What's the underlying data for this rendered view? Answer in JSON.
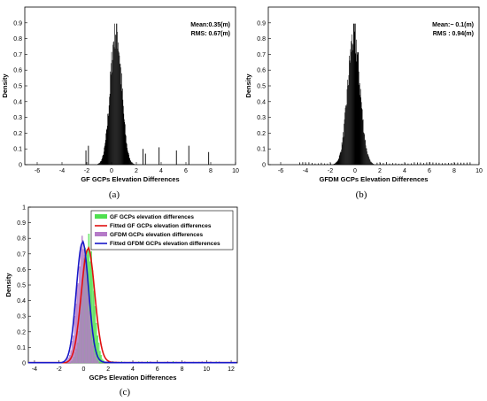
{
  "chart_data": [
    {
      "id": "a",
      "type": "bar",
      "caption": "(a)",
      "xlabel": "GF GCPs Elevation Differences",
      "ylabel": "Density",
      "xlim": [
        -7,
        10
      ],
      "ylim": [
        0,
        1
      ],
      "xticks": [
        -6,
        -4,
        -2,
        0,
        2,
        4,
        6,
        8,
        10
      ],
      "yticks": [
        0,
        0.1,
        0.2,
        0.3,
        0.4,
        0.5,
        0.6,
        0.7,
        0.8,
        0.9
      ],
      "annotations": [
        "Mean:0.35(m)",
        "RMS: 0.67(m)"
      ],
      "distribution": {
        "center": 0.35,
        "spread": 0.45,
        "peak": 0.89
      },
      "outliers": [
        [
          -2.1,
          0.09
        ],
        [
          -1.9,
          0.12
        ],
        [
          2.5,
          0.1
        ],
        [
          2.7,
          0.07
        ],
        [
          3.8,
          0.11
        ],
        [
          5.2,
          0.09
        ],
        [
          6.2,
          0.12
        ],
        [
          7.8,
          0.08
        ]
      ]
    },
    {
      "id": "b",
      "type": "bar",
      "caption": "(b)",
      "xlabel": "GFDM GCPs Elevation Differences",
      "ylabel": "Density",
      "xlim": [
        -7,
        10
      ],
      "ylim": [
        0,
        1
      ],
      "xticks": [
        -6,
        -4,
        -2,
        0,
        2,
        4,
        6,
        8,
        10
      ],
      "yticks": [
        0,
        0.1,
        0.2,
        0.3,
        0.4,
        0.5,
        0.6,
        0.7,
        0.8,
        0.9
      ],
      "annotations": [
        "Mean:− 0.1(m)",
        "RMS : 0.94(m)"
      ],
      "distribution": {
        "center": -0.1,
        "spread": 0.5,
        "peak": 0.84
      },
      "outliers": []
    },
    {
      "id": "c",
      "type": "bar",
      "caption": "(c)",
      "xlabel": "GCPs Elevation Differences",
      "ylabel": "Density",
      "xlim": [
        -4.5,
        12.5
      ],
      "ylim": [
        0,
        1
      ],
      "xticks": [
        -4,
        -2,
        0,
        2,
        4,
        6,
        8,
        10,
        12
      ],
      "yticks": [
        0,
        0.1,
        0.2,
        0.3,
        0.4,
        0.5,
        0.6,
        0.7,
        0.8,
        0.9,
        1
      ],
      "series": [
        {
          "name": "GF GCPs elevation differences",
          "kind": "hist",
          "color": "#4fe04f",
          "center": 0.35,
          "spread": 0.45,
          "peak": 0.8
        },
        {
          "name": "Fitted GF GCPs elevation differences",
          "kind": "fit",
          "color": "#e01010",
          "center": 0.35,
          "spread": 0.55,
          "peak": 0.73
        },
        {
          "name": "GFDM GCPs elevation differences",
          "kind": "hist",
          "color": "#b57ac8",
          "center": -0.1,
          "spread": 0.45,
          "peak": 0.75
        },
        {
          "name": "Fitted GFDM GCPs elevation differences",
          "kind": "fit",
          "color": "#1818c8",
          "center": -0.1,
          "spread": 0.5,
          "peak": 0.77
        }
      ]
    }
  ]
}
